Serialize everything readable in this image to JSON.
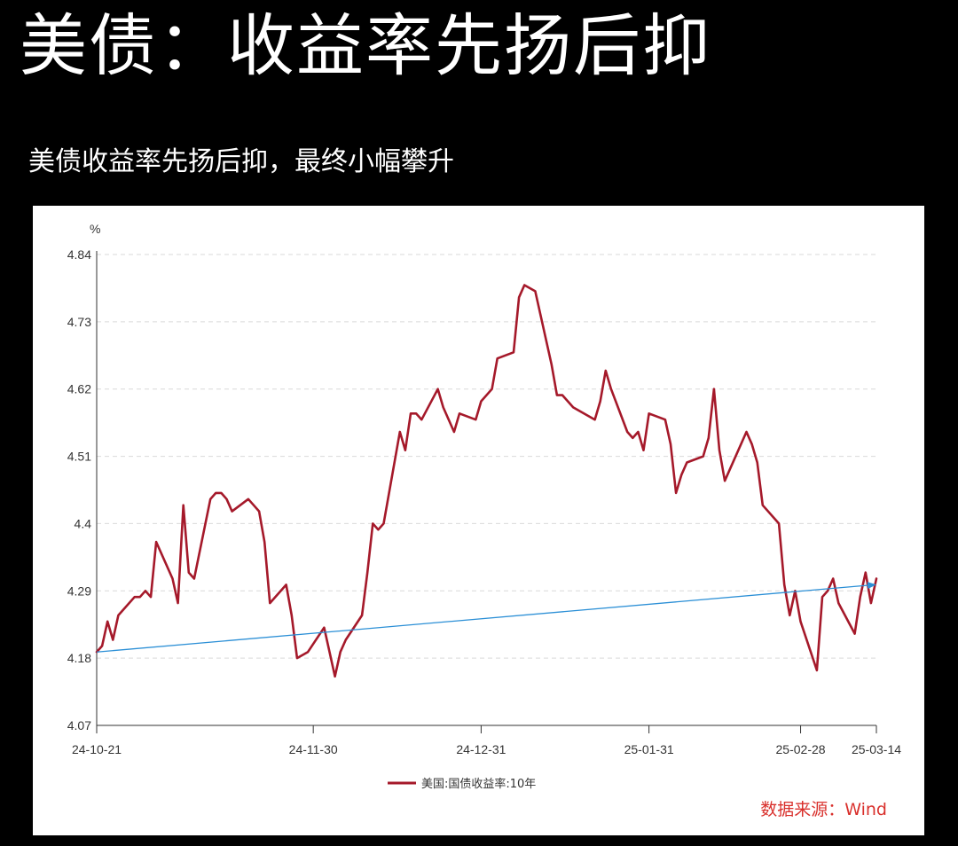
{
  "title": "美债：收益率先扬后抑",
  "subtitle": "美债收益率先扬后抑，最终小幅攀升",
  "source": "数据来源：Wind",
  "colors": {
    "background": "#000000",
    "panel": "#ffffff",
    "series": "#a5192a",
    "trend": "#2b8fd6",
    "source": "#d9302c"
  },
  "chart_data": {
    "type": "line",
    "ylabel": "%",
    "ylim": [
      4.07,
      4.84
    ],
    "yticks": [
      "4.84",
      "4.73",
      "4.62",
      "4.51",
      "4.4",
      "4.29",
      "4.18",
      "4.07"
    ],
    "xlim": [
      "2024-10-21",
      "2025-03-14"
    ],
    "xticks": [
      {
        "label": "24-10-21",
        "date": "2024-10-21"
      },
      {
        "label": "24-11-30",
        "date": "2024-11-30"
      },
      {
        "label": "24-12-31",
        "date": "2024-12-31"
      },
      {
        "label": "25-01-31",
        "date": "2025-01-31"
      },
      {
        "label": "25-02-28",
        "date": "2025-02-28"
      },
      {
        "label": "25-03-14",
        "date": "2025-03-14"
      }
    ],
    "grid": true,
    "legend_position": "bottom",
    "series": [
      {
        "name": "美国:国债收益率:10年",
        "x": [
          "2024-10-21",
          "2024-10-22",
          "2024-10-23",
          "2024-10-24",
          "2024-10-25",
          "2024-10-28",
          "2024-10-29",
          "2024-10-30",
          "2024-10-31",
          "2024-11-01",
          "2024-11-04",
          "2024-11-05",
          "2024-11-06",
          "2024-11-07",
          "2024-11-08",
          "2024-11-11",
          "2024-11-12",
          "2024-11-13",
          "2024-11-14",
          "2024-11-15",
          "2024-11-18",
          "2024-11-19",
          "2024-11-20",
          "2024-11-21",
          "2024-11-22",
          "2024-11-25",
          "2024-11-26",
          "2024-11-27",
          "2024-11-29",
          "2024-12-02",
          "2024-12-03",
          "2024-12-04",
          "2024-12-05",
          "2024-12-06",
          "2024-12-09",
          "2024-12-10",
          "2024-12-11",
          "2024-12-12",
          "2024-12-13",
          "2024-12-16",
          "2024-12-17",
          "2024-12-18",
          "2024-12-19",
          "2024-12-20",
          "2024-12-23",
          "2024-12-24",
          "2024-12-26",
          "2024-12-27",
          "2024-12-30",
          "2024-12-31",
          "2025-01-02",
          "2025-01-03",
          "2025-01-06",
          "2025-01-07",
          "2025-01-08",
          "2025-01-10",
          "2025-01-13",
          "2025-01-14",
          "2025-01-15",
          "2025-01-16",
          "2025-01-17",
          "2025-01-21",
          "2025-01-22",
          "2025-01-23",
          "2025-01-24",
          "2025-01-27",
          "2025-01-28",
          "2025-01-29",
          "2025-01-30",
          "2025-01-31",
          "2025-02-03",
          "2025-02-04",
          "2025-02-05",
          "2025-02-06",
          "2025-02-07",
          "2025-02-10",
          "2025-02-11",
          "2025-02-12",
          "2025-02-13",
          "2025-02-14",
          "2025-02-18",
          "2025-02-19",
          "2025-02-20",
          "2025-02-21",
          "2025-02-24",
          "2025-02-25",
          "2025-02-26",
          "2025-02-27",
          "2025-02-28",
          "2025-03-03",
          "2025-03-04",
          "2025-03-05",
          "2025-03-06",
          "2025-03-07",
          "2025-03-10",
          "2025-03-11",
          "2025-03-12",
          "2025-03-13",
          "2025-03-14"
        ],
        "values": [
          4.19,
          4.2,
          4.24,
          4.21,
          4.25,
          4.28,
          4.28,
          4.29,
          4.28,
          4.37,
          4.31,
          4.27,
          4.43,
          4.32,
          4.31,
          4.44,
          4.45,
          4.45,
          4.44,
          4.42,
          4.44,
          4.43,
          4.42,
          4.37,
          4.27,
          4.3,
          4.25,
          4.18,
          4.19,
          4.23,
          4.19,
          4.15,
          4.19,
          4.21,
          4.25,
          4.32,
          4.4,
          4.39,
          4.4,
          4.55,
          4.52,
          4.58,
          4.58,
          4.57,
          4.62,
          4.59,
          4.55,
          4.58,
          4.57,
          4.6,
          4.62,
          4.67,
          4.68,
          4.77,
          4.79,
          4.78,
          4.66,
          4.61,
          4.61,
          4.6,
          4.59,
          4.57,
          4.6,
          4.65,
          4.62,
          4.55,
          4.54,
          4.55,
          4.52,
          4.58,
          4.57,
          4.53,
          4.45,
          4.48,
          4.5,
          4.51,
          4.54,
          4.62,
          4.52,
          4.47,
          4.55,
          4.53,
          4.5,
          4.43,
          4.4,
          4.3,
          4.25,
          4.29,
          4.24,
          4.16,
          4.28,
          4.29,
          4.31,
          4.27,
          4.22,
          4.28,
          4.32,
          4.27,
          4.31
        ]
      }
    ],
    "trendline": {
      "start": [
        "2024-10-21",
        4.19
      ],
      "end": [
        "2025-03-14",
        4.3
      ]
    }
  }
}
